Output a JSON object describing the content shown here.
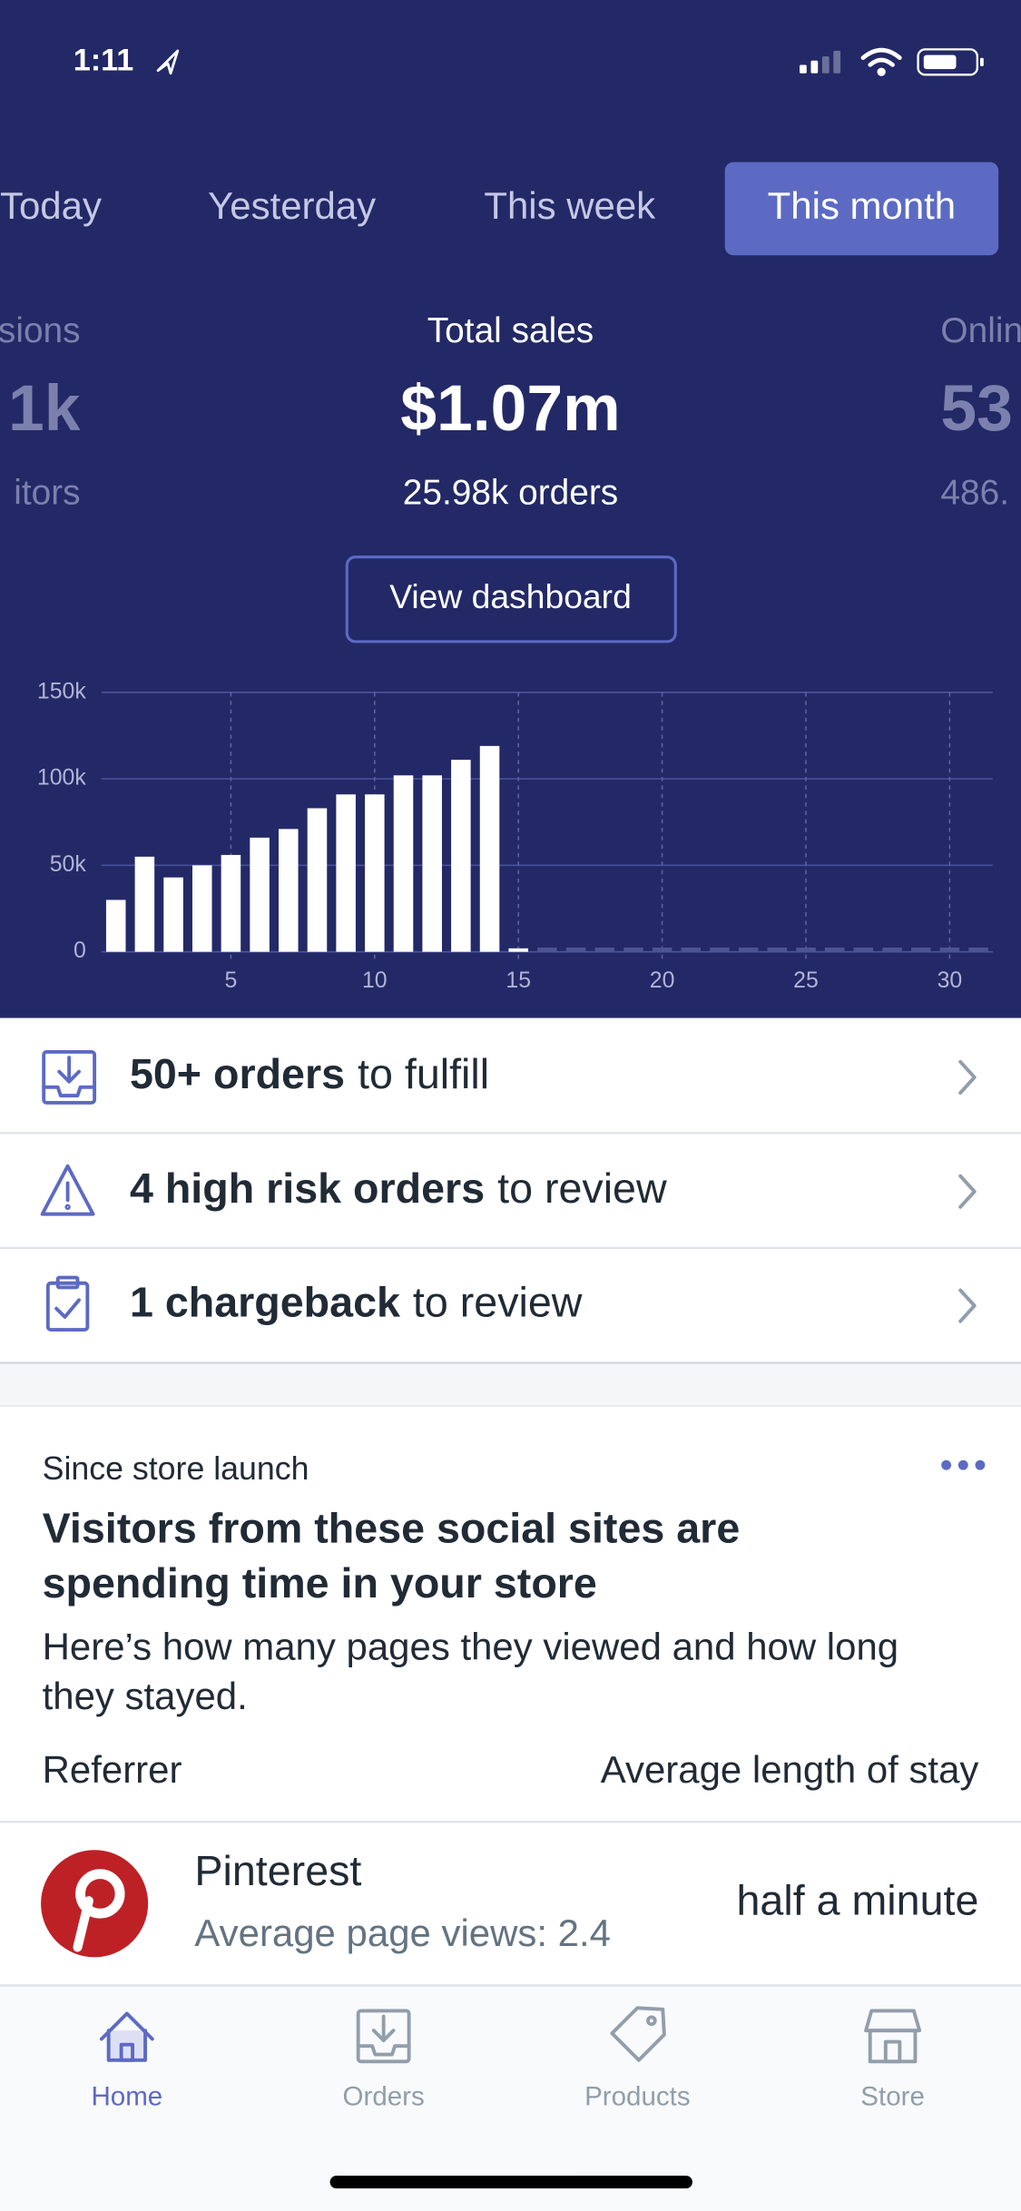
{
  "status_bar": {
    "time": "1:11"
  },
  "period_tabs": [
    "Today",
    "Yesterday",
    "This week",
    "This month"
  ],
  "selected_tab": 3,
  "metrics": [
    {
      "label": "sions",
      "value": "1k",
      "sub": "itors"
    },
    {
      "label": "Total sales",
      "value": "$1.07m",
      "sub": "25.98k orders"
    },
    {
      "label": "Onlin",
      "value": "53",
      "sub": "486."
    }
  ],
  "view_button": "View dashboard",
  "chart_data": {
    "type": "bar",
    "x": [
      1,
      2,
      3,
      4,
      5,
      6,
      7,
      8,
      9,
      10,
      11,
      12,
      13,
      14,
      15,
      16,
      17,
      18,
      19,
      20,
      21,
      22,
      23,
      24,
      25,
      26,
      27,
      28,
      29,
      30,
      31
    ],
    "values": [
      30000,
      55000,
      43000,
      50000,
      56000,
      66000,
      71000,
      83000,
      91000,
      91000,
      102000,
      102000,
      111000,
      119000,
      2000,
      0,
      0,
      0,
      0,
      0,
      0,
      0,
      0,
      0,
      0,
      0,
      0,
      0,
      0,
      0,
      0
    ],
    "color": "#ffffff",
    "xlim": [
      0.5,
      31.5
    ],
    "xticks": [
      5,
      10,
      15,
      20,
      25,
      30
    ],
    "ylim": [
      0,
      150000
    ],
    "yticks": [
      0,
      {
        "value": 50000,
        "label": "50k"
      },
      {
        "value": 100000,
        "label": "100k"
      },
      {
        "value": 150000,
        "label": "150k"
      }
    ],
    "grid": true
  },
  "tasks": [
    {
      "bold": "50+ orders",
      "text": "to fulfill"
    },
    {
      "bold": "4 high risk orders",
      "text": "to review"
    },
    {
      "bold": "1 chargeback",
      "text": "to review"
    }
  ],
  "insight_card": {
    "eyebrow": "Since store launch",
    "title_lines": [
      "Visitors from these social sites are",
      "spending time in your store"
    ],
    "body_lines": [
      "Here’s how many pages they viewed and how long",
      "they stayed."
    ],
    "columns": [
      "Referrer",
      "Average length of stay"
    ],
    "rows": [
      {
        "name": "Pinterest",
        "detail": "Average page views: 2.4",
        "value": "half a minute"
      }
    ]
  },
  "tab_bar": [
    "Home",
    "Orders",
    "Products",
    "Store"
  ]
}
